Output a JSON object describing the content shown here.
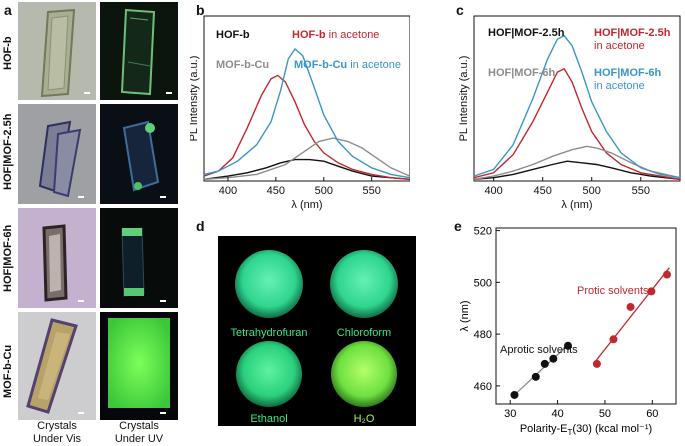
{
  "panel_a": {
    "letter": "a",
    "rows": [
      "HOF-b",
      "HOF|MOF-2.5h",
      "HOF|MOF-6h",
      "MOF-b-Cu"
    ],
    "captions": {
      "vis_line1": "Crystals",
      "vis_line2": "Under Vis",
      "uv_line1": "Crystals",
      "uv_line2": "Under UV"
    }
  },
  "panel_b": {
    "letter": "b",
    "legend": {
      "hofb": "HOF-b",
      "hofb_acetone_name": "HOF-b",
      "hofb_acetone_suffix": " in acetone",
      "mofcu": "MOF-b-Cu",
      "mofcu_acetone_name": "MOF-b-Cu",
      "mofcu_acetone_suffix": " in acetone"
    },
    "colors": {
      "black": "#111111",
      "red": "#c0282f",
      "grey": "#8c8c8c",
      "blue": "#3a96c8"
    }
  },
  "panel_c": {
    "letter": "c",
    "legend": {
      "mof25": "HOF|MOF-2.5h",
      "mof25_acetone_name": "HOF|MOF-2.5h",
      "mof25_acetone_suffix": "in acetone",
      "mof6": "HOF|MOF-6h",
      "mof6_acetone_name": "HOF|MOF-6h",
      "mof6_acetone_suffix": "in acetone"
    }
  },
  "panel_d": {
    "letter": "d",
    "vials": [
      "Tetrahydrofuran",
      "Chloroform",
      "Ethanol",
      "H₂O"
    ]
  },
  "panel_e": {
    "letter": "e",
    "protic_label": "Protic solvents",
    "aprotic_label": "Aprotic solvents"
  },
  "chart_data": [
    {
      "type": "line",
      "panel": "b",
      "xlabel": "λ (nm)",
      "ylabel": "PL Intensity (a.u.)",
      "xlim": [
        375,
        590
      ],
      "xticks": [
        400,
        450,
        500,
        550
      ],
      "series": [
        {
          "name": "HOF-b",
          "color": "#111111",
          "x": [
            375,
            400,
            420,
            440,
            455,
            470,
            485,
            500,
            515,
            530,
            550,
            570,
            590
          ],
          "y": [
            0.01,
            0.03,
            0.05,
            0.08,
            0.11,
            0.13,
            0.13,
            0.12,
            0.09,
            0.06,
            0.03,
            0.02,
            0.01
          ]
        },
        {
          "name": "HOF-b in acetone",
          "color": "#c0282f",
          "x": [
            375,
            390,
            405,
            420,
            435,
            445,
            452,
            460,
            470,
            480,
            490,
            500,
            515,
            530,
            550,
            570,
            590
          ],
          "y": [
            0.03,
            0.06,
            0.14,
            0.32,
            0.52,
            0.62,
            0.64,
            0.6,
            0.48,
            0.34,
            0.24,
            0.17,
            0.11,
            0.07,
            0.04,
            0.02,
            0.01
          ]
        },
        {
          "name": "MOF-b-Cu",
          "color": "#8c8c8c",
          "x": [
            375,
            400,
            430,
            460,
            480,
            495,
            510,
            525,
            540,
            555,
            570,
            590
          ],
          "y": [
            0.01,
            0.02,
            0.04,
            0.1,
            0.18,
            0.24,
            0.26,
            0.24,
            0.2,
            0.14,
            0.08,
            0.03
          ]
        },
        {
          "name": "MOF-b-Cu in acetone",
          "color": "#3a96c8",
          "x": [
            375,
            390,
            410,
            430,
            445,
            455,
            463,
            470,
            478,
            488,
            500,
            515,
            530,
            550,
            570,
            590
          ],
          "y": [
            0.04,
            0.06,
            0.12,
            0.22,
            0.36,
            0.55,
            0.74,
            0.8,
            0.76,
            0.6,
            0.4,
            0.24,
            0.15,
            0.08,
            0.04,
            0.02
          ]
        }
      ]
    },
    {
      "type": "line",
      "panel": "c",
      "xlabel": "λ (nm)",
      "ylabel": "PL Intensity (a.u.)",
      "xlim": [
        380,
        590
      ],
      "xticks": [
        400,
        450,
        500,
        550
      ],
      "series": [
        {
          "name": "HOF|MOF-2.5h",
          "color": "#111111",
          "x": [
            380,
            400,
            420,
            440,
            460,
            475,
            490,
            505,
            520,
            540,
            560,
            590
          ],
          "y": [
            0.01,
            0.02,
            0.04,
            0.07,
            0.1,
            0.12,
            0.11,
            0.1,
            0.08,
            0.05,
            0.03,
            0.01
          ]
        },
        {
          "name": "HOF|MOF-2.5h in acetone",
          "color": "#c0282f",
          "x": [
            380,
            400,
            420,
            440,
            455,
            465,
            472,
            480,
            490,
            500,
            515,
            530,
            550,
            570,
            590
          ],
          "y": [
            0.02,
            0.05,
            0.16,
            0.36,
            0.54,
            0.66,
            0.68,
            0.6,
            0.44,
            0.3,
            0.17,
            0.1,
            0.05,
            0.03,
            0.01
          ]
        },
        {
          "name": "HOF|MOF-6h",
          "color": "#8c8c8c",
          "x": [
            380,
            400,
            420,
            440,
            460,
            480,
            495,
            505,
            520,
            540,
            560,
            590
          ],
          "y": [
            0.01,
            0.03,
            0.06,
            0.1,
            0.15,
            0.19,
            0.21,
            0.2,
            0.17,
            0.11,
            0.06,
            0.02
          ]
        },
        {
          "name": "HOF|MOF-6h in acetone",
          "color": "#3a96c8",
          "x": [
            380,
            400,
            420,
            440,
            455,
            465,
            472,
            480,
            490,
            500,
            515,
            530,
            550,
            570,
            590
          ],
          "y": [
            0.03,
            0.07,
            0.22,
            0.5,
            0.74,
            0.86,
            0.88,
            0.82,
            0.66,
            0.48,
            0.3,
            0.17,
            0.08,
            0.04,
            0.02
          ]
        }
      ]
    },
    {
      "type": "scatter",
      "panel": "e",
      "xlabel": "Polarity-E",
      "xlabel_sub": "T",
      "xlabel_rest": "(30) (kcal mol⁻¹)",
      "ylabel": "λ (nm)",
      "xlim": [
        27,
        65
      ],
      "ylim": [
        453,
        521
      ],
      "xticks": [
        30,
        40,
        50,
        60
      ],
      "yticks": [
        460,
        480,
        500,
        520
      ],
      "series": [
        {
          "name": "Aprotic solvents",
          "color": "#111111",
          "x": [
            30.9,
            35.4,
            37.3,
            39.1,
            42.2
          ],
          "y": [
            456.5,
            463.5,
            468.5,
            470.5,
            475.5
          ]
        },
        {
          "name": "Protic solvents",
          "color": "#c0282f",
          "x": [
            48.3,
            51.8,
            55.4,
            59.8,
            63.1
          ],
          "y": [
            468.5,
            478.0,
            490.5,
            496.5,
            503.0
          ]
        }
      ]
    }
  ]
}
